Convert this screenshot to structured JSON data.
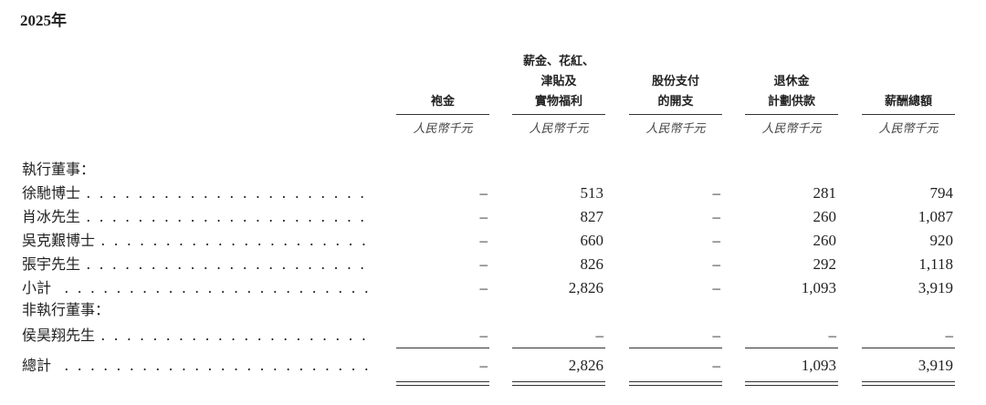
{
  "year_title": "2025年",
  "columns": [
    {
      "header": [
        "",
        "",
        "袍金"
      ],
      "unit": "人民幣千元"
    },
    {
      "header": [
        "薪金、花紅、",
        "津貼及",
        "實物福利"
      ],
      "unit": "人民幣千元"
    },
    {
      "header": [
        "",
        "股份支付",
        "的開支"
      ],
      "unit": "人民幣千元"
    },
    {
      "header": [
        "",
        "退休金",
        "計劃供款"
      ],
      "unit": "人民幣千元"
    },
    {
      "header": [
        "",
        "",
        "薪酬總額"
      ],
      "unit": "人民幣千元"
    }
  ],
  "sections": {
    "executive": "執行董事：",
    "non_executive": "非執行董事："
  },
  "rows": [
    {
      "label": "徐馳博士",
      "values": [
        "–",
        "513",
        "–",
        "281",
        "794"
      ]
    },
    {
      "label": "肖冰先生",
      "values": [
        "–",
        "827",
        "–",
        "260",
        "1,087"
      ]
    },
    {
      "label": "吳克艱博士",
      "values": [
        "–",
        "660",
        "–",
        "260",
        "920"
      ]
    },
    {
      "label": "張宇先生",
      "values": [
        "–",
        "826",
        "–",
        "292",
        "1,118"
      ]
    },
    {
      "label": "小計",
      "values": [
        "–",
        "2,826",
        "–",
        "1,093",
        "3,919"
      ]
    },
    {
      "label": "侯昊翔先生",
      "values": [
        "–",
        "–",
        "–",
        "–",
        "–"
      ]
    },
    {
      "label": "總計",
      "values": [
        "–",
        "2,826",
        "–",
        "1,093",
        "3,919"
      ]
    }
  ]
}
